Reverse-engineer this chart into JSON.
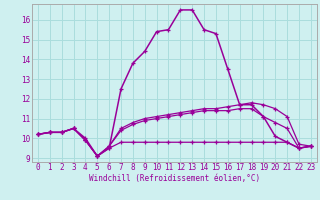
{
  "xlabel": "Windchill (Refroidissement éolien,°C)",
  "background_color": "#cff0f0",
  "grid_color": "#aadddd",
  "line_color": "#990099",
  "x": [
    0,
    1,
    2,
    3,
    4,
    5,
    6,
    7,
    8,
    9,
    10,
    11,
    12,
    13,
    14,
    15,
    16,
    17,
    18,
    19,
    20,
    21,
    22,
    23
  ],
  "curve_main": [
    10.2,
    10.3,
    10.3,
    10.5,
    10.0,
    9.1,
    9.5,
    12.5,
    13.8,
    14.4,
    15.4,
    15.5,
    16.5,
    16.5,
    15.5,
    15.3,
    13.5,
    11.7,
    11.7,
    11.1,
    10.1,
    9.8,
    9.5,
    9.6
  ],
  "curve_flat1": [
    10.2,
    10.3,
    10.3,
    10.5,
    9.9,
    9.1,
    9.5,
    9.8,
    9.8,
    9.8,
    9.8,
    9.8,
    9.8,
    9.8,
    9.8,
    9.8,
    9.8,
    9.8,
    9.8,
    9.8,
    9.8,
    9.8,
    9.5,
    9.6
  ],
  "curve_flat2": [
    10.2,
    10.3,
    10.3,
    10.5,
    9.9,
    9.1,
    9.6,
    10.4,
    10.7,
    10.9,
    11.0,
    11.1,
    11.2,
    11.3,
    11.4,
    11.4,
    11.4,
    11.5,
    11.5,
    11.1,
    10.8,
    10.5,
    9.5,
    9.6
  ],
  "curve_flat3": [
    10.2,
    10.3,
    10.3,
    10.5,
    9.9,
    9.1,
    9.6,
    10.5,
    10.8,
    11.0,
    11.1,
    11.2,
    11.3,
    11.4,
    11.5,
    11.5,
    11.6,
    11.7,
    11.8,
    11.7,
    11.5,
    11.1,
    9.7,
    9.6
  ],
  "ylim": [
    8.8,
    16.8
  ],
  "yticks": [
    9,
    10,
    11,
    12,
    13,
    14,
    15,
    16
  ],
  "xlim": [
    -0.5,
    23.5
  ],
  "tick_fontsize": 5.5,
  "label_fontsize": 5.5
}
